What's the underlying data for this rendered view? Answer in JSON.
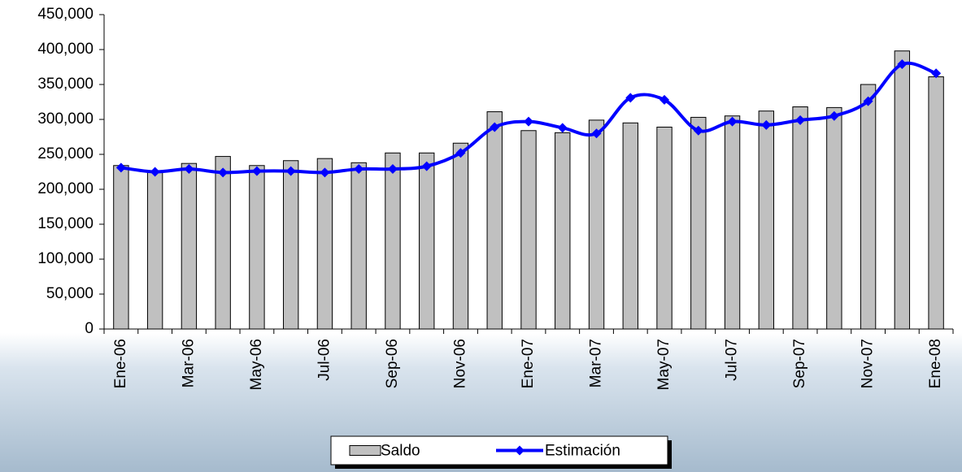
{
  "chart_data": {
    "type": "bar-line",
    "categories": [
      "Ene-06",
      null,
      "Mar-06",
      null,
      "May-06",
      null,
      "Jul-06",
      null,
      "Sep-06",
      null,
      "Nov-06",
      null,
      "Ene-07",
      null,
      "Mar-07",
      null,
      "May-07",
      null,
      "Jul-07",
      null,
      "Sep-07",
      null,
      "Nov-07",
      null,
      "Ene-08"
    ],
    "series": [
      {
        "name": "Saldo",
        "type": "bar",
        "color": "#c0c0c0",
        "values": [
          234000,
          226000,
          237000,
          247000,
          234000,
          241000,
          244000,
          238000,
          252000,
          252000,
          266000,
          311000,
          284000,
          281000,
          299000,
          295000,
          289000,
          303000,
          305000,
          312000,
          318000,
          317000,
          350000,
          398000,
          361000
        ]
      },
      {
        "name": "Estimación",
        "type": "line",
        "color": "#0000ff",
        "values": [
          231000,
          225000,
          229000,
          224000,
          226000,
          226000,
          224000,
          229000,
          229000,
          233000,
          252000,
          289000,
          297000,
          288000,
          280000,
          331000,
          328000,
          284000,
          297000,
          292000,
          299000,
          305000,
          326000,
          379000,
          366000
        ]
      }
    ],
    "ylim": [
      0,
      450000
    ],
    "yticks": [
      0,
      {
        "value": 50000,
        "label": "50,000"
      },
      {
        "value": 100000,
        "label": "100,000"
      },
      {
        "value": 150000,
        "label": "150,000"
      },
      {
        "value": 200000,
        "label": "200,000"
      },
      {
        "value": 250000,
        "label": "250,000"
      },
      {
        "value": 300000,
        "label": "300,000"
      },
      {
        "value": 350000,
        "label": "350,000"
      },
      {
        "value": 400000,
        "label": "400,000"
      },
      {
        "value": 450000,
        "label": "450,000"
      }
    ],
    "grid": false,
    "legend": "bottom"
  }
}
